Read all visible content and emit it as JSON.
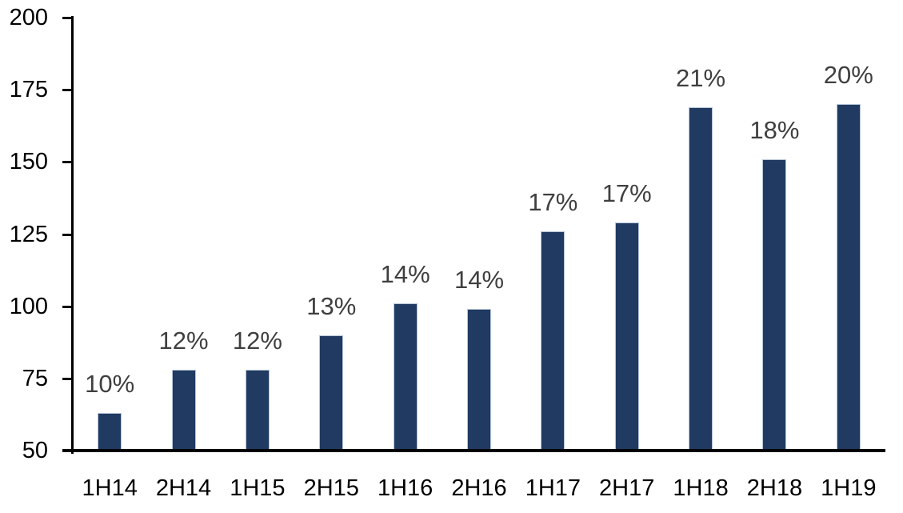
{
  "chart_data": {
    "type": "bar",
    "title": "",
    "xlabel": "",
    "ylabel": "",
    "categories": [
      "1H14",
      "2H14",
      "1H15",
      "2H15",
      "1H16",
      "2H16",
      "1H17",
      "2H17",
      "1H18",
      "2H18",
      "1H19"
    ],
    "values": [
      63,
      78,
      78,
      90,
      101,
      99,
      126,
      129,
      169,
      151,
      170
    ],
    "bar_labels": [
      "10%",
      "12%",
      "12%",
      "13%",
      "14%",
      "14%",
      "17%",
      "17%",
      "21%",
      "18%",
      "20%"
    ],
    "ylim": [
      50,
      200
    ],
    "y_ticks": [
      50,
      75,
      100,
      125,
      150,
      175,
      200
    ],
    "grid": false,
    "legend": "none",
    "colors": {
      "bar_fill": "#203a61",
      "bar_border": "#b7c4d9",
      "data_label": "#3f3f3f",
      "axis": "#000000",
      "background": "#ffffff"
    }
  }
}
